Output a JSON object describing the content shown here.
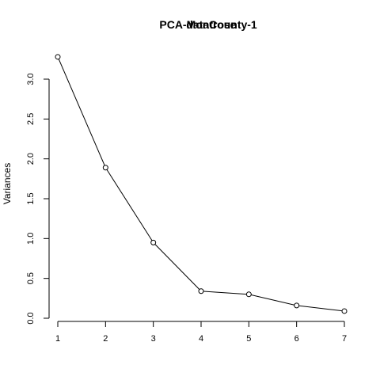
{
  "chart_data": {
    "type": "line",
    "title": "PCA-Montrose",
    "title_overlap": "dataCounty-1",
    "xlabel": "",
    "ylabel": "Variances",
    "x": [
      1,
      2,
      3,
      4,
      5,
      6,
      7
    ],
    "x_ticks": [
      "1",
      "2",
      "3",
      "4",
      "5",
      "6",
      "7"
    ],
    "y_ticks": [
      "0.0",
      "0.5",
      "1.0",
      "1.5",
      "2.0",
      "2.5",
      "3.0"
    ],
    "y_tick_values": [
      0,
      0.5,
      1.0,
      1.5,
      2.0,
      2.5,
      3.0
    ],
    "ylim": [
      0,
      3.3
    ],
    "xlim": [
      1,
      7
    ],
    "grid": false,
    "legend": "none",
    "series": [
      {
        "values": [
          3.28,
          1.89,
          0.95,
          0.34,
          0.3,
          0.16,
          0.09
        ]
      }
    ],
    "colors": {
      "line": "#000000",
      "marker_stroke": "#000000",
      "marker_fill": "#ffffff"
    }
  }
}
